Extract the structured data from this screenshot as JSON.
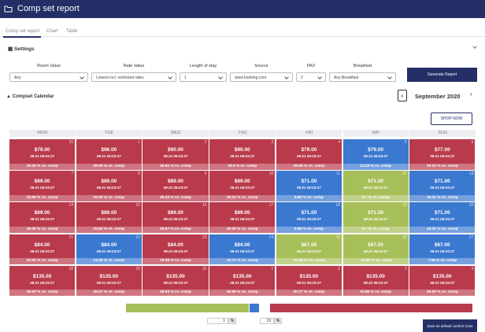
{
  "header": {
    "title": "Comp set report"
  },
  "tabs": [
    "Comp set report",
    "Chart",
    "Table"
  ],
  "settings": {
    "title": "Settings",
    "filters": [
      {
        "label": "Room Value",
        "value": "Any"
      },
      {
        "label": "Rate Value",
        "value": "Lowest incl. restricted rates"
      },
      {
        "label": "Length of stay",
        "value": "1"
      },
      {
        "label": "Source",
        "value": "www.booking.com"
      },
      {
        "label": "PAX",
        "value": "2"
      },
      {
        "label": "Breakfast",
        "value": "Any Breakfast"
      }
    ],
    "button": "Generate Report"
  },
  "calendar": {
    "title": "Compset Calendar",
    "month": "September 2020",
    "shop_now": "SHOP NOW",
    "weekdays": [
      "MON",
      "TUE",
      "WED",
      "THU",
      "FRI",
      "SAT",
      "SUN"
    ],
    "weeks": [
      [
        {
          "day": "31",
          "price": "$79.00",
          "time": "08-21 06:03:27",
          "diff": "20.28 % vs. comp",
          "color": "#b93a4b"
        },
        {
          "day": "1",
          "price": "$96.00",
          "time": "08-21 06:03:27",
          "diff": "39.06 % vs. comp",
          "color": "#b93a4b"
        },
        {
          "day": "2",
          "price": "$90.00",
          "time": "08-21 06:03:27",
          "diff": "40.91 % vs. comp",
          "color": "#b93a4b"
        },
        {
          "day": "3",
          "price": "$90.00",
          "time": "08-21 06:03:27",
          "diff": "39.5 % vs. comp",
          "color": "#b93a4b"
        },
        {
          "day": "4",
          "price": "$79.00",
          "time": "08-21 06:03:27",
          "diff": "26.58 % vs. comp",
          "color": "#b93a4b"
        },
        {
          "day": "5",
          "price": "$79.00",
          "time": "08-21 06:03:27",
          "diff": "13.29 % vs. comp",
          "color": "#3b78d0"
        },
        {
          "day": "6",
          "price": "$77.00",
          "time": "08-21 06:03:27",
          "diff": "20.22 % vs. comp",
          "color": "#b93a4b"
        }
      ],
      [
        {
          "day": "7",
          "price": "$89.00",
          "time": "08-21 06:03:27",
          "diff": "32.58 % vs. comp",
          "color": "#b93a4b"
        },
        {
          "day": "8",
          "price": "$89.00",
          "time": "08-21 06:03:27",
          "diff": "29.09 % vs. comp",
          "color": "#b93a4b"
        },
        {
          "day": "9",
          "price": "$89.00",
          "time": "08-21 06:03:27",
          "diff": "30.34 % vs. comp",
          "color": "#b93a4b"
        },
        {
          "day": "10",
          "price": "$89.00",
          "time": "08-21 06:03:27",
          "diff": "30.34 % vs. comp",
          "color": "#b93a4b"
        },
        {
          "day": "11",
          "price": "$71.00",
          "time": "08-21 06:03:27",
          "diff": "9.86 % vs. comp",
          "color": "#3b78d0"
        },
        {
          "day": "12",
          "price": "$71.00",
          "time": "08-21 06:03:27",
          "diff": "0.7 % vs. comp",
          "color": "#a7bf58"
        },
        {
          "day": "13",
          "price": "$71.00",
          "time": "08-21 06:03:27",
          "diff": "18.31 % vs. comp",
          "color": "#3b78d0"
        }
      ],
      [
        {
          "day": "14",
          "price": "$89.00",
          "time": "08-21 06:03:27",
          "diff": "28.09 % vs. comp",
          "color": "#b93a4b"
        },
        {
          "day": "15",
          "price": "$89.00",
          "time": "08-21 06:03:27",
          "diff": "25.84 % vs. comp",
          "color": "#b93a4b"
        },
        {
          "day": "16",
          "price": "$89.00",
          "time": "08-21 06:03:27",
          "diff": "26.97 % vs. comp",
          "color": "#b93a4b"
        },
        {
          "day": "17",
          "price": "$89.00",
          "time": "08-21 06:03:27",
          "diff": "28.09 % vs. comp",
          "color": "#b93a4b"
        },
        {
          "day": "18",
          "price": "$71.00",
          "time": "08-21 06:03:27",
          "diff": "9.86 % vs. comp",
          "color": "#3b78d0"
        },
        {
          "day": "19",
          "price": "$71.00",
          "time": "08-21 06:03:27",
          "diff": "0.7 % vs. comp",
          "color": "#a7bf58"
        },
        {
          "day": "20",
          "price": "$71.00",
          "time": "08-21 06:03:27",
          "diff": "18.31 % vs. comp",
          "color": "#3b78d0"
        }
      ],
      [
        {
          "day": "21",
          "price": "$84.00",
          "time": "08-21 06:03:27",
          "diff": "22.62 % vs. comp",
          "color": "#b93a4b"
        },
        {
          "day": "22",
          "price": "$84.00",
          "time": "08-21 06:03:27",
          "diff": "14.29 % vs. comp",
          "color": "#3b78d0"
        },
        {
          "day": "23",
          "price": "$84.00",
          "time": "08-21 06:03:27",
          "diff": "19.05 % vs. comp",
          "color": "#b93a4b"
        },
        {
          "day": "24",
          "price": "$84.00",
          "time": "08-21 06:03:27",
          "diff": "10.71 % vs. comp",
          "color": "#3b78d0"
        },
        {
          "day": "25",
          "price": "$67.00",
          "time": "08-21 06:03:27",
          "diff": "-11.94 % vs. comp",
          "color": "#a7bf58"
        },
        {
          "day": "26",
          "price": "$67.00",
          "time": "08-21 06:03:27",
          "diff": "-14.93 % vs. comp",
          "color": "#a7bf58"
        },
        {
          "day": "27",
          "price": "$67.00",
          "time": "08-21 06:03:27",
          "diff": "7.46 % vs. comp",
          "color": "#3b78d0"
        }
      ],
      [
        {
          "day": "28",
          "price": "$135.00",
          "time": "08-21 06:03:27",
          "diff": "49.63 % vs. comp",
          "color": "#b93a4b"
        },
        {
          "day": "29",
          "price": "$135.00",
          "time": "08-21 06:03:27",
          "diff": "46.67 % vs. comp",
          "color": "#b93a4b"
        },
        {
          "day": "30",
          "price": "$135.00",
          "time": "08-21 06:03:27",
          "diff": "49.63 % vs. comp",
          "color": "#b93a4b"
        },
        {
          "day": "1",
          "price": "$135.00",
          "time": "08-21 06:03:27",
          "diff": "42.96 % vs. comp",
          "color": "#b93a4b"
        },
        {
          "day": "2",
          "price": "$135.00",
          "time": "08-21 06:03:27",
          "diff": "40.37 % vs. comp",
          "color": "#b93a4b"
        },
        {
          "day": "3",
          "price": "$135.00",
          "time": "08-21 06:03:27",
          "diff": "31.85 % vs. comp",
          "color": "#b93a4b"
        },
        {
          "day": "4",
          "price": "$135.00",
          "time": "08-21 06:03:27",
          "diff": "48.52 % vs. comp",
          "color": "#b93a4b"
        }
      ]
    ]
  },
  "comfort_zone": {
    "low": "1",
    "low_unit": "%",
    "high": "19",
    "high_unit": "%",
    "button": "Save as default comfort zone"
  }
}
